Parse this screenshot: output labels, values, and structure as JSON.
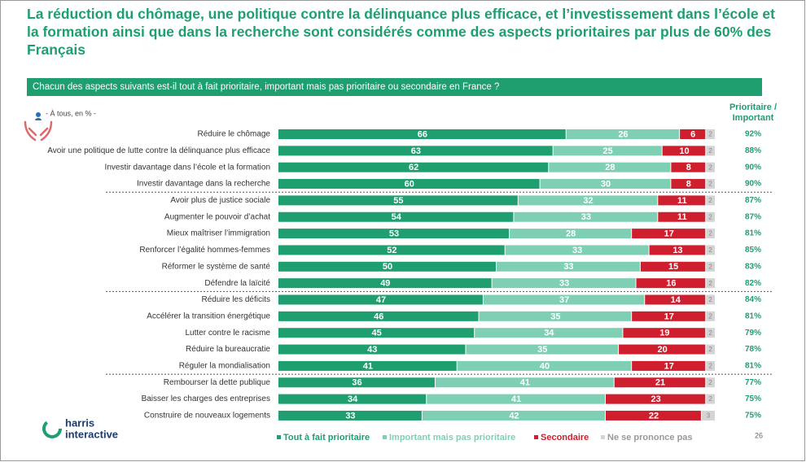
{
  "chart_data": {
    "type": "stacked_bar_horizontal",
    "title": "La réduction du chômage, une politique contre la délinquance plus efficace, et l’investissement dans l’école et la formation ainsi que dans la recherche sont considérés comme des aspects prioritaires par plus de 60% des Français",
    "subtitle": "Chacun des aspects suivants est-il tout à fait prioritaire, important mais pas prioritaire ou secondaire en France ?",
    "note": "- À tous, en % -",
    "categories": [
      "Réduire le chômage",
      "Avoir une politique de lutte contre la délinquance plus efficace",
      "Investir davantage dans l’école et la formation",
      "Investir davantage dans la recherche",
      "Avoir plus de justice sociale",
      "Augmenter le pouvoir d’achat",
      "Mieux maîtriser l’immigration",
      "Renforcer l’égalité hommes-femmes",
      "Réformer le système de santé",
      "Défendre la laïcité",
      "Réduire les déficits",
      "Accélérer la transition énergétique",
      "Lutter contre le racisme",
      "Réduire la bureaucratie",
      "Réguler la mondialisation",
      "Rembourser la dette publique",
      "Baisser les charges des entreprises",
      "Construire de nouveaux logements"
    ],
    "series": [
      {
        "name": "Tout à fait prioritaire",
        "color": "#1f9e6f",
        "values": [
          66,
          63,
          62,
          60,
          55,
          54,
          53,
          52,
          50,
          49,
          47,
          46,
          45,
          43,
          41,
          36,
          34,
          33
        ]
      },
      {
        "name": "Important mais pas prioritaire",
        "color": "#7fcfb5",
        "values": [
          26,
          25,
          28,
          30,
          32,
          33,
          28,
          33,
          33,
          33,
          37,
          35,
          34,
          35,
          40,
          41,
          41,
          42
        ]
      },
      {
        "name": "Secondaire",
        "color": "#cf1f2e",
        "values": [
          6,
          10,
          8,
          8,
          11,
          11,
          17,
          13,
          15,
          16,
          14,
          17,
          19,
          20,
          17,
          21,
          23,
          22
        ]
      },
      {
        "name": "Ne se prononce pas",
        "color": "#d4d4d4",
        "values": [
          2,
          2,
          2,
          2,
          2,
          2,
          2,
          2,
          2,
          2,
          2,
          2,
          2,
          2,
          2,
          2,
          2,
          3
        ]
      }
    ],
    "xlim": [
      0,
      100
    ],
    "summary": {
      "title": "Prioritaire / Important",
      "values": [
        92,
        88,
        90,
        90,
        87,
        87,
        81,
        85,
        83,
        82,
        84,
        81,
        79,
        78,
        81,
        77,
        75,
        75
      ],
      "value_labels": [
        "92%",
        "88%",
        "90%",
        "90%",
        "87%",
        "87%",
        "81%",
        "85%",
        "83%",
        "82%",
        "84%",
        "81%",
        "79%",
        "78%",
        "81%",
        "77%",
        "75%",
        "75%"
      ]
    },
    "logo": [
      "harris",
      "interactive"
    ],
    "page_number": "26"
  }
}
